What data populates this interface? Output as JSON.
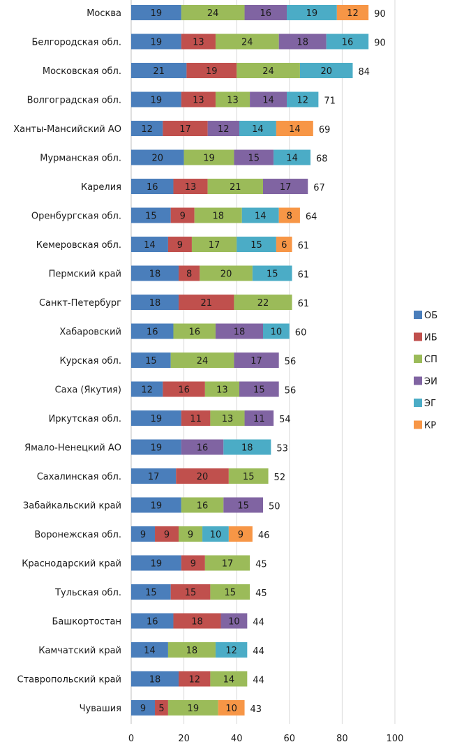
{
  "chart_data": {
    "type": "bar",
    "orientation": "horizontal",
    "stacked": true,
    "categories": [
      "Москва",
      "Белгородская обл.",
      "Московская обл.",
      "Волгоградская обл.",
      "Ханты-Мансийский АО",
      "Мурманская обл.",
      "Карелия",
      "Оренбургская обл.",
      "Кемеровская обл.",
      "Пермский край",
      "Санкт-Петербург",
      "Хабаровский",
      "Курская обл.",
      "Саха (Якутия)",
      "Иркутская обл.",
      "Ямало-Ненецкий АО",
      "Сахалинская обл.",
      "Забайкальский край",
      "Воронежская обл.",
      "Краснодарский край",
      "Тульская обл.",
      "Башкортостан",
      "Камчатский край",
      "Ставропольский край",
      "Чувашия"
    ],
    "series": [
      {
        "name": "ОБ",
        "color": "#4a7ebb",
        "values": [
          19,
          19,
          21,
          19,
          12,
          20,
          16,
          15,
          14,
          18,
          18,
          16,
          15,
          12,
          19,
          19,
          17,
          19,
          9,
          19,
          15,
          16,
          14,
          18,
          9
        ]
      },
      {
        "name": "ИБ",
        "color": "#c0504d",
        "values": [
          0,
          13,
          19,
          13,
          17,
          0,
          13,
          9,
          9,
          8,
          21,
          0,
          0,
          16,
          11,
          0,
          20,
          0,
          9,
          9,
          15,
          18,
          0,
          12,
          5
        ]
      },
      {
        "name": "СП",
        "color": "#9bbb59",
        "values": [
          24,
          24,
          24,
          13,
          0,
          19,
          21,
          18,
          17,
          20,
          22,
          16,
          24,
          13,
          13,
          0,
          15,
          16,
          9,
          17,
          15,
          0,
          18,
          14,
          19
        ]
      },
      {
        "name": "ЭИ",
        "color": "#8064a2",
        "values": [
          16,
          18,
          0,
          14,
          12,
          15,
          17,
          0,
          0,
          0,
          0,
          18,
          17,
          15,
          11,
          16,
          0,
          15,
          0,
          0,
          0,
          10,
          0,
          0,
          0
        ]
      },
      {
        "name": "ЭГ",
        "color": "#4bacc6",
        "values": [
          19,
          16,
          20,
          12,
          14,
          14,
          0,
          14,
          15,
          15,
          0,
          10,
          0,
          0,
          0,
          18,
          0,
          0,
          10,
          0,
          0,
          0,
          12,
          0,
          0
        ]
      },
      {
        "name": "КР",
        "color": "#f79646",
        "values": [
          12,
          0,
          0,
          0,
          14,
          0,
          0,
          8,
          6,
          0,
          0,
          0,
          0,
          0,
          0,
          0,
          0,
          0,
          9,
          0,
          0,
          0,
          0,
          0,
          10
        ]
      }
    ],
    "totals": [
      90,
      90,
      84,
      71,
      69,
      68,
      67,
      64,
      61,
      61,
      61,
      60,
      56,
      56,
      54,
      53,
      52,
      50,
      46,
      45,
      45,
      44,
      44,
      44,
      43
    ],
    "xlim": [
      0,
      100
    ],
    "x_ticks": [
      "0",
      "20",
      "40",
      "60",
      "80",
      "100"
    ],
    "grid": "vertical",
    "legend_position": "right",
    "title": "",
    "xlabel": "",
    "ylabel": ""
  }
}
